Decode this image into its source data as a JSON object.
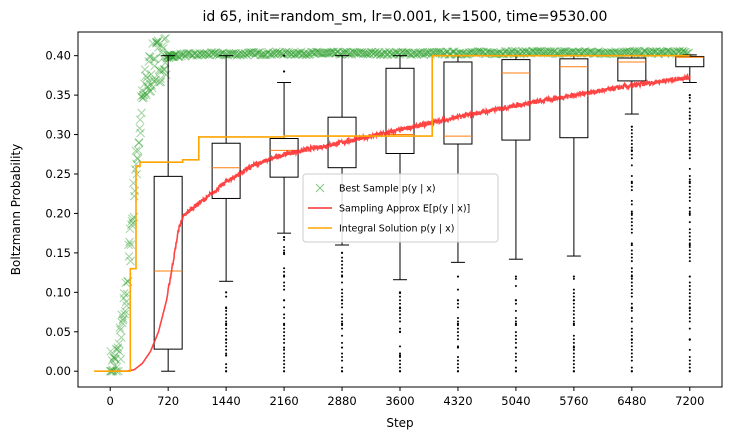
{
  "chart_data": {
    "type": "line",
    "title": "id 65, init=random_sm, lr=0.001, k=1500, time=9530.00",
    "xlabel": "Step",
    "ylabel": "Boltzmann Probability",
    "xlim": [
      -400,
      7600
    ],
    "ylim": [
      -0.02,
      0.43
    ],
    "x_ticks": [
      0,
      720,
      1440,
      2160,
      2880,
      3600,
      4320,
      5040,
      5760,
      6480,
      7200
    ],
    "x_tick_labels": [
      "0",
      "720",
      "1440",
      "2160",
      "2880",
      "3600",
      "4320",
      "5040",
      "5760",
      "6480",
      "7200"
    ],
    "y_ticks": [
      0.0,
      0.05,
      0.1,
      0.15,
      0.2,
      0.25,
      0.3,
      0.35,
      0.4
    ],
    "y_tick_labels": [
      "0.00",
      "0.05",
      "0.10",
      "0.15",
      "0.20",
      "0.25",
      "0.30",
      "0.35",
      "0.40"
    ],
    "legend": {
      "placement": "center-right",
      "entries": [
        {
          "label": "Best Sample p(y | x)",
          "color": "#2ca02c",
          "marker": "x"
        },
        {
          "label": "Sampling Approx E[p(y | x)]",
          "color": "#ff3030",
          "marker": "line"
        },
        {
          "label": "Integral Solution p(y | x)",
          "color": "#ffa500",
          "marker": "line"
        }
      ]
    },
    "series": [
      {
        "name": "Best Sample p(y | x)",
        "kind": "scatter",
        "color": "#2ca02c",
        "x": [
          0,
          30,
          60,
          90,
          120,
          150,
          180,
          210,
          240,
          270,
          300,
          330,
          360,
          390,
          420,
          450,
          480,
          510,
          540,
          570,
          600,
          660,
          720,
          800,
          900,
          1000,
          1200,
          1500,
          2000,
          3000,
          4000,
          5000,
          6000,
          7200
        ],
        "y": [
          0.0,
          0.0,
          0.005,
          0.015,
          0.03,
          0.05,
          0.08,
          0.11,
          0.15,
          0.19,
          0.23,
          0.27,
          0.3,
          0.33,
          0.35,
          0.365,
          0.375,
          0.382,
          0.388,
          0.392,
          0.395,
          0.398,
          0.399,
          0.4,
          0.401,
          0.401,
          0.402,
          0.402,
          0.403,
          0.403,
          0.403,
          0.404,
          0.404,
          0.404
        ]
      },
      {
        "name": "Sampling Approx E[p(y | x)]",
        "kind": "line",
        "color": "#ff3030",
        "x": [
          0,
          200,
          300,
          400,
          500,
          600,
          700,
          800,
          850,
          900,
          1000,
          1100,
          1200,
          1440,
          1800,
          2160,
          2880,
          3600,
          4320,
          5040,
          5760,
          6480,
          7200
        ],
        "y": [
          0.0,
          0.0,
          0.002,
          0.01,
          0.025,
          0.05,
          0.09,
          0.15,
          0.18,
          0.195,
          0.205,
          0.213,
          0.22,
          0.24,
          0.262,
          0.275,
          0.29,
          0.306,
          0.322,
          0.337,
          0.35,
          0.362,
          0.373
        ]
      },
      {
        "name": "Integral Solution p(y | x)",
        "kind": "step",
        "color": "#ffa500",
        "x": [
          -200,
          250,
          250,
          320,
          320,
          370,
          370,
          900,
          900,
          1100,
          1100,
          2160,
          2160,
          4000,
          4000,
          7200
        ],
        "y": [
          0.0,
          0.0,
          0.13,
          0.13,
          0.26,
          0.26,
          0.265,
          0.265,
          0.268,
          0.268,
          0.297,
          0.297,
          0.298,
          0.298,
          0.4,
          0.4
        ]
      }
    ],
    "boxplots": [
      {
        "x": 720,
        "whisker_low": 0.0,
        "q1": 0.028,
        "median": 0.127,
        "q3": 0.247,
        "whisker_high": 0.4,
        "fliers": []
      },
      {
        "x": 1440,
        "whisker_low": 0.114,
        "q1": 0.219,
        "median": 0.258,
        "q3": 0.289,
        "whisker_high": 0.4,
        "fliers": [
          0.0,
          0.02,
          0.04,
          0.06,
          0.08,
          0.1
        ]
      },
      {
        "x": 2160,
        "whisker_low": 0.175,
        "q1": 0.246,
        "median": 0.28,
        "q3": 0.295,
        "whisker_high": 0.366,
        "fliers": [
          0.0,
          0.03,
          0.06,
          0.09,
          0.12,
          0.15,
          0.17,
          0.38,
          0.4
        ]
      },
      {
        "x": 2880,
        "whisker_low": 0.16,
        "q1": 0.258,
        "median": 0.298,
        "q3": 0.322,
        "whisker_high": 0.4,
        "fliers": [
          0.0,
          0.03,
          0.06,
          0.09,
          0.12,
          0.15
        ]
      },
      {
        "x": 3600,
        "whisker_low": 0.116,
        "q1": 0.276,
        "median": 0.3,
        "q3": 0.384,
        "whisker_high": 0.4,
        "fliers": [
          0.0,
          0.02,
          0.05,
          0.08,
          0.1
        ]
      },
      {
        "x": 4320,
        "whisker_low": 0.138,
        "q1": 0.288,
        "median": 0.298,
        "q3": 0.392,
        "whisker_high": 0.4,
        "fliers": [
          0.0,
          0.03,
          0.06,
          0.09,
          0.12
        ]
      },
      {
        "x": 5040,
        "whisker_low": 0.142,
        "q1": 0.293,
        "median": 0.378,
        "q3": 0.395,
        "whisker_high": 0.4,
        "fliers": [
          0.0,
          0.03,
          0.06,
          0.09,
          0.12
        ]
      },
      {
        "x": 5760,
        "whisker_low": 0.146,
        "q1": 0.296,
        "median": 0.386,
        "q3": 0.396,
        "whisker_high": 0.4,
        "fliers": [
          0.0,
          0.03,
          0.06,
          0.09,
          0.12
        ]
      },
      {
        "x": 6480,
        "whisker_low": 0.326,
        "q1": 0.368,
        "median": 0.392,
        "q3": 0.397,
        "whisker_high": 0.4,
        "fliers": [
          0.0,
          0.04,
          0.08,
          0.12,
          0.16,
          0.2,
          0.24,
          0.28,
          0.31
        ]
      },
      {
        "x": 7200,
        "whisker_low": 0.366,
        "q1": 0.386,
        "median": 0.398,
        "q3": 0.399,
        "whisker_high": 0.401,
        "fliers": [
          0.0,
          0.04,
          0.08,
          0.12,
          0.16,
          0.2,
          0.24,
          0.28,
          0.32,
          0.35
        ]
      }
    ],
    "grid": false
  }
}
